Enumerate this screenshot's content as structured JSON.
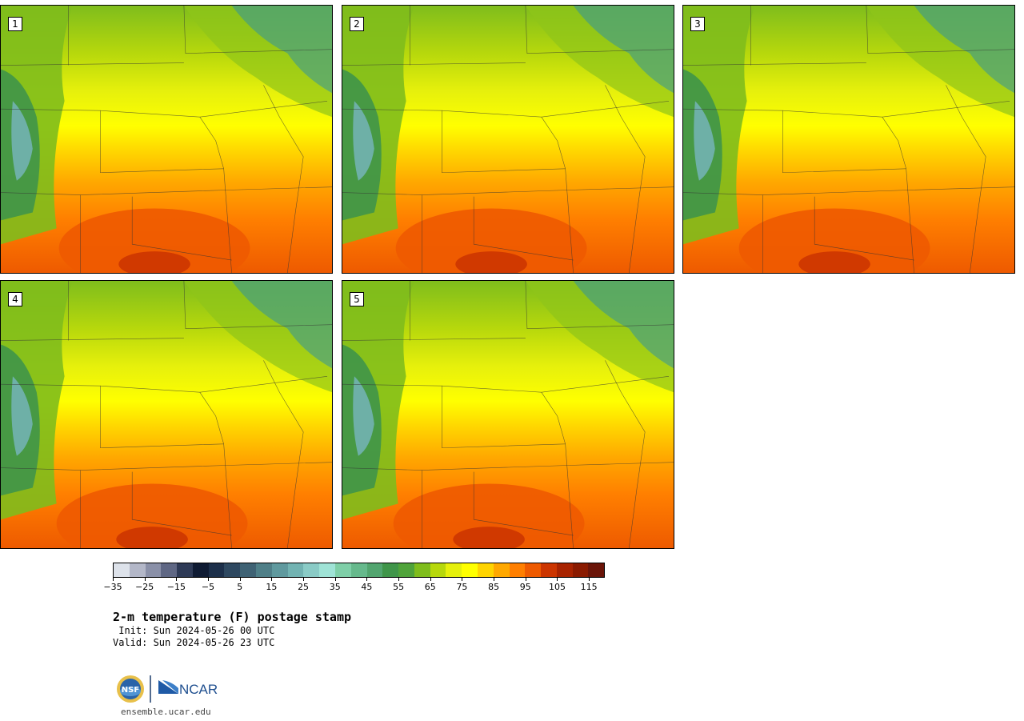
{
  "panels": [
    {
      "label": "1",
      "warmth": 0.55
    },
    {
      "label": "2",
      "warmth": 0.45
    },
    {
      "label": "3",
      "warmth": 0.5
    },
    {
      "label": "4",
      "warmth": 0.5
    },
    {
      "label": "5",
      "warmth": 0.4
    }
  ],
  "colorbar": {
    "colors": [
      "#dde2ea",
      "#b3b7c8",
      "#8a90a8",
      "#5f6784",
      "#2e3a56",
      "#0f1b33",
      "#1c2f4a",
      "#2e4860",
      "#3f6274",
      "#4f7f88",
      "#5f999e",
      "#72b3b2",
      "#8acbc6",
      "#9fe3d6",
      "#7fcfa8",
      "#66b98c",
      "#52a56f",
      "#3f9549",
      "#4fa33a",
      "#7fbd1c",
      "#b7d80c",
      "#e6f00c",
      "#ffff00",
      "#ffd400",
      "#ffa800",
      "#ff7f00",
      "#ee5a00",
      "#cc3500",
      "#a82300",
      "#8a1a00",
      "#6a1408"
    ],
    "ticks": [
      "−35",
      "−25",
      "−15",
      "−5",
      "5",
      "15",
      "25",
      "35",
      "45",
      "55",
      "65",
      "75",
      "85",
      "95",
      "105",
      "115"
    ]
  },
  "title": "2-m temperature (F) postage stamp",
  "init": " Init: Sun 2024-05-26 00 UTC",
  "valid": "Valid: Sun 2024-05-26 23 UTC",
  "logo": {
    "nsf": "NSF",
    "ncar": "NCAR"
  },
  "url": "ensemble.ucar.edu"
}
